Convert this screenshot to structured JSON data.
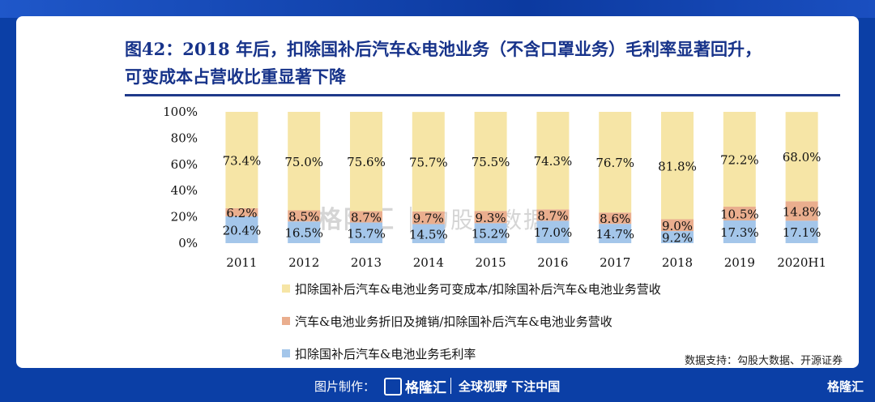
{
  "title": {
    "line1": "图42：2018 年后，扣除国补后汽车&电池业务（不含口罩业务）毛利率显著回升，",
    "line2": "可变成本占营收比重显著下降"
  },
  "source": "数据支持：勾股大数据、开源证券",
  "watermark": {
    "brand": "格隆汇",
    "sub": "勾股大数据"
  },
  "footer": {
    "made_by": "图片制作：",
    "logo": "格隆汇",
    "slogan": "全球视野 下注中国",
    "corner": "格隆汇"
  },
  "colors": {
    "variable_cost": "#f6e5a6",
    "depreciation": "#eaae8e",
    "gross_margin": "#a4c6ea",
    "title": "#17338a",
    "frame": "#0b3fa6"
  },
  "chart_data": {
    "type": "bar",
    "stacked": true,
    "categories": [
      "2011",
      "2012",
      "2013",
      "2014",
      "2015",
      "2016",
      "2017",
      "2018",
      "2019",
      "2020H1"
    ],
    "series": [
      {
        "name": "扣除国补后汽车&电池业务毛利率",
        "values": [
          20.4,
          16.5,
          15.7,
          14.5,
          15.2,
          17.0,
          14.7,
          9.2,
          17.3,
          17.1
        ],
        "labels": [
          "20.4%",
          "16.5%",
          "15.7%",
          "14.5%",
          "15.2%",
          "17.0%",
          "14.7%",
          "9.2%",
          "17.3%",
          "17.1%"
        ],
        "color": "#a4c6ea"
      },
      {
        "name": "汽车&电池业务折旧及摊销/扣除国补后汽车&电池业务营收",
        "values": [
          6.2,
          8.5,
          8.7,
          9.7,
          9.3,
          8.7,
          8.6,
          9.0,
          10.5,
          14.8
        ],
        "labels": [
          "6.2%",
          "8.5%",
          "8.7%",
          "9.7%",
          "9.3%",
          "8.7%",
          "8.6%",
          "9.0%",
          "10.5%",
          "14.8%"
        ],
        "color": "#eaae8e"
      },
      {
        "name": "扣除国补后汽车&电池业务可变成本/扣除国补后汽车&电池业务营收",
        "values": [
          73.4,
          75.0,
          75.6,
          75.7,
          75.5,
          74.3,
          76.7,
          81.8,
          72.2,
          68.0
        ],
        "labels": [
          "73.4%",
          "75.0%",
          "75.6%",
          "75.7%",
          "75.5%",
          "74.3%",
          "76.7%",
          "81.8%",
          "72.2%",
          "68.0%"
        ],
        "color": "#f6e5a6"
      }
    ],
    "ylim": [
      0,
      100
    ],
    "yticks": [
      "0%",
      "20%",
      "40%",
      "60%",
      "80%",
      "100%"
    ],
    "legend": [
      {
        "label": "扣除国补后汽车&电池业务可变成本/扣除国补后汽车&电池业务营收",
        "color": "#f6e5a6"
      },
      {
        "label": "汽车&电池业务折旧及摊销/扣除国补后汽车&电池业务营收",
        "color": "#eaae8e"
      },
      {
        "label": "扣除国补后汽车&电池业务毛利率",
        "color": "#a4c6ea"
      }
    ],
    "legend_position": "bottom"
  }
}
